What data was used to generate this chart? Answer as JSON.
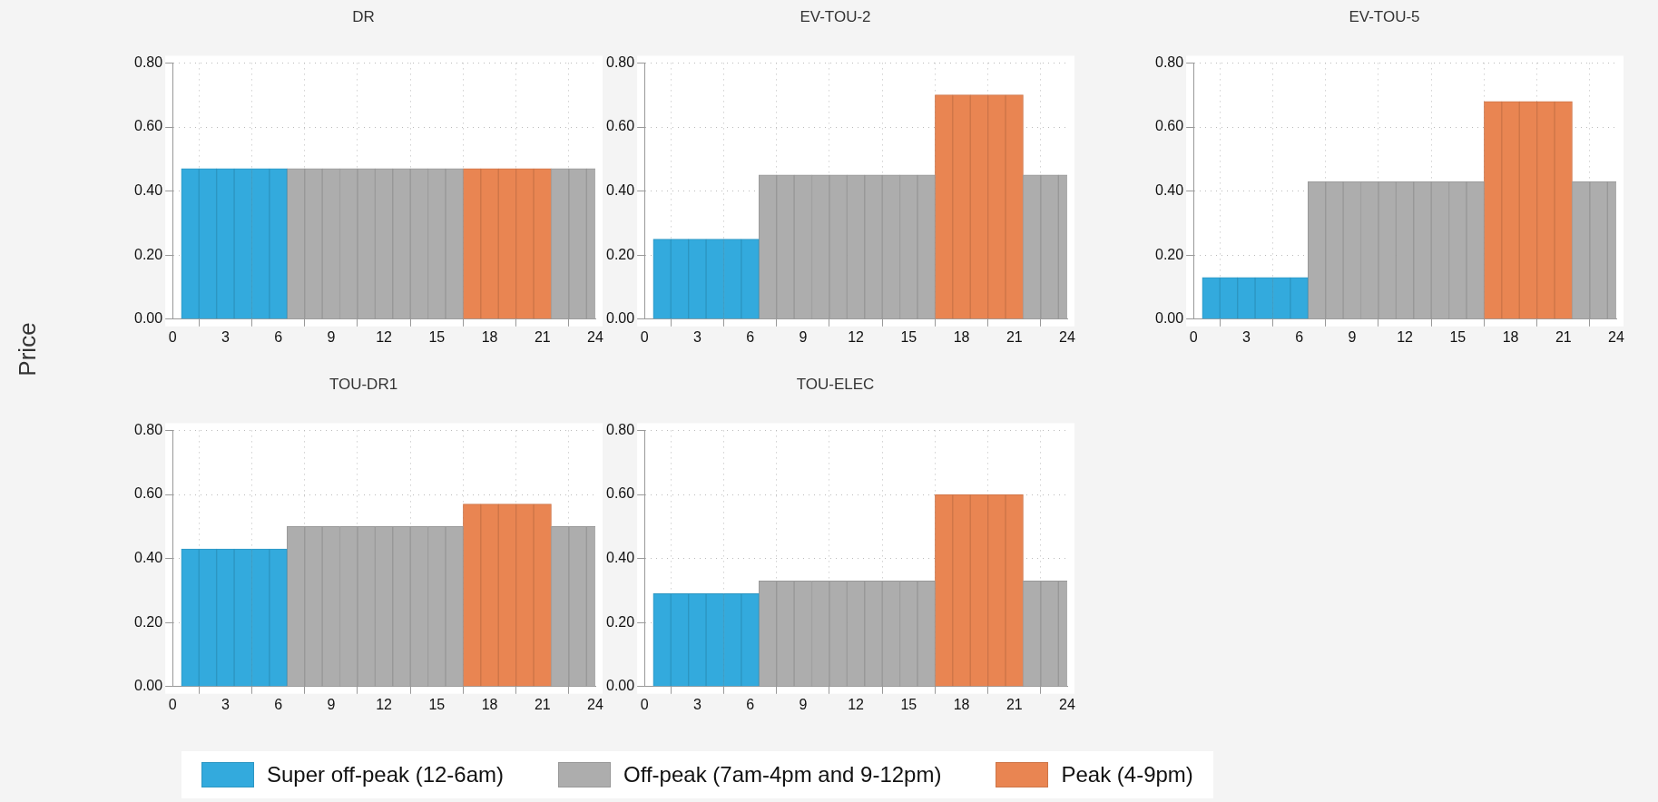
{
  "chart_data": [
    {
      "type": "bar",
      "title": "DR",
      "ylabel": "Price",
      "legend": "bottom",
      "xlim": [
        0,
        24
      ],
      "xticks": [
        0,
        3,
        6,
        9,
        12,
        15,
        18,
        21,
        24
      ],
      "ylim": [
        0,
        0.8
      ],
      "yticks": [
        {
          "value": 0,
          "label": "0.00"
        },
        {
          "value": 0.2,
          "label": "0.20"
        },
        {
          "value": 0.4,
          "label": "0.40"
        },
        {
          "value": 0.6,
          "label": "0.60"
        },
        {
          "value": 0.8,
          "label": "0.80"
        }
      ],
      "grid": true,
      "series": [
        {
          "name": "Super off-peak (12-6am)",
          "color": "#33aadd",
          "x": [
            1,
            2,
            3,
            4,
            5,
            6
          ],
          "values": [
            0.47,
            0.47,
            0.47,
            0.47,
            0.47,
            0.47
          ]
        },
        {
          "name": "Off-peak (7am-4pm and 9-12pm)",
          "color": "#adadad",
          "x": [
            7,
            8,
            9,
            10,
            11,
            12,
            13,
            14,
            15,
            16,
            22,
            23,
            24
          ],
          "values": [
            0.47,
            0.47,
            0.47,
            0.47,
            0.47,
            0.47,
            0.47,
            0.47,
            0.47,
            0.47,
            0.47,
            0.47,
            0.47
          ]
        },
        {
          "name": "Peak (4-9pm)",
          "color": "#e98552",
          "x": [
            17,
            18,
            19,
            20,
            21
          ],
          "values": [
            0.47,
            0.47,
            0.47,
            0.47,
            0.47
          ]
        }
      ]
    },
    {
      "type": "bar",
      "title": "EV-TOU-2",
      "xlim": [
        0,
        24
      ],
      "xticks": [
        0,
        3,
        6,
        9,
        12,
        15,
        18,
        21,
        24
      ],
      "ylim": [
        0,
        0.8
      ],
      "yticks": [
        {
          "value": 0,
          "label": "0.00"
        },
        {
          "value": 0.2,
          "label": "0.20"
        },
        {
          "value": 0.4,
          "label": "0.40"
        },
        {
          "value": 0.6,
          "label": "0.60"
        },
        {
          "value": 0.8,
          "label": "0.80"
        }
      ],
      "grid": true,
      "series": [
        {
          "color": "#33aadd",
          "x": [
            1,
            2,
            3,
            4,
            5,
            6
          ],
          "values": [
            0.25,
            0.25,
            0.25,
            0.25,
            0.25,
            0.25
          ]
        },
        {
          "color": "#adadad",
          "x": [
            7,
            8,
            9,
            10,
            11,
            12,
            13,
            14,
            15,
            16,
            22,
            23,
            24
          ],
          "values": [
            0.45,
            0.45,
            0.45,
            0.45,
            0.45,
            0.45,
            0.45,
            0.45,
            0.45,
            0.45,
            0.45,
            0.45,
            0.45
          ]
        },
        {
          "color": "#e98552",
          "x": [
            17,
            18,
            19,
            20,
            21
          ],
          "values": [
            0.7,
            0.7,
            0.7,
            0.7,
            0.7
          ]
        }
      ]
    },
    {
      "type": "bar",
      "title": "EV-TOU-5",
      "xlim": [
        0,
        24
      ],
      "xticks": [
        0,
        3,
        6,
        9,
        12,
        15,
        18,
        21,
        24
      ],
      "ylim": [
        0,
        0.8
      ],
      "yticks": [
        {
          "value": 0,
          "label": "0.00"
        },
        {
          "value": 0.2,
          "label": "0.20"
        },
        {
          "value": 0.4,
          "label": "0.40"
        },
        {
          "value": 0.6,
          "label": "0.60"
        },
        {
          "value": 0.8,
          "label": "0.80"
        }
      ],
      "grid": true,
      "series": [
        {
          "color": "#33aadd",
          "x": [
            1,
            2,
            3,
            4,
            5,
            6
          ],
          "values": [
            0.13,
            0.13,
            0.13,
            0.13,
            0.13,
            0.13
          ]
        },
        {
          "color": "#adadad",
          "x": [
            7,
            8,
            9,
            10,
            11,
            12,
            13,
            14,
            15,
            16,
            22,
            23,
            24
          ],
          "values": [
            0.43,
            0.43,
            0.43,
            0.43,
            0.43,
            0.43,
            0.43,
            0.43,
            0.43,
            0.43,
            0.43,
            0.43,
            0.43
          ]
        },
        {
          "color": "#e98552",
          "x": [
            17,
            18,
            19,
            20,
            21
          ],
          "values": [
            0.68,
            0.68,
            0.68,
            0.68,
            0.68
          ]
        }
      ]
    },
    {
      "type": "bar",
      "title": "TOU-DR1",
      "xlim": [
        0,
        24
      ],
      "xticks": [
        0,
        3,
        6,
        9,
        12,
        15,
        18,
        21,
        24
      ],
      "ylim": [
        0,
        0.8
      ],
      "yticks": [
        {
          "value": 0,
          "label": "0.00"
        },
        {
          "value": 0.2,
          "label": "0.20"
        },
        {
          "value": 0.4,
          "label": "0.40"
        },
        {
          "value": 0.6,
          "label": "0.60"
        },
        {
          "value": 0.8,
          "label": "0.80"
        }
      ],
      "grid": true,
      "series": [
        {
          "color": "#33aadd",
          "x": [
            1,
            2,
            3,
            4,
            5,
            6
          ],
          "values": [
            0.43,
            0.43,
            0.43,
            0.43,
            0.43,
            0.43
          ]
        },
        {
          "color": "#adadad",
          "x": [
            7,
            8,
            9,
            10,
            11,
            12,
            13,
            14,
            15,
            16,
            22,
            23,
            24
          ],
          "values": [
            0.5,
            0.5,
            0.5,
            0.5,
            0.5,
            0.5,
            0.5,
            0.5,
            0.5,
            0.5,
            0.5,
            0.5,
            0.5
          ]
        },
        {
          "color": "#e98552",
          "x": [
            17,
            18,
            19,
            20,
            21
          ],
          "values": [
            0.57,
            0.57,
            0.57,
            0.57,
            0.57
          ]
        }
      ]
    },
    {
      "type": "bar",
      "title": "TOU-ELEC",
      "xlim": [
        0,
        24
      ],
      "xticks": [
        0,
        3,
        6,
        9,
        12,
        15,
        18,
        21,
        24
      ],
      "ylim": [
        0,
        0.8
      ],
      "yticks": [
        {
          "value": 0,
          "label": "0.00"
        },
        {
          "value": 0.2,
          "label": "0.20"
        },
        {
          "value": 0.4,
          "label": "0.40"
        },
        {
          "value": 0.6,
          "label": "0.60"
        },
        {
          "value": 0.8,
          "label": "0.80"
        }
      ],
      "grid": true,
      "series": [
        {
          "color": "#33aadd",
          "x": [
            1,
            2,
            3,
            4,
            5,
            6
          ],
          "values": [
            0.29,
            0.29,
            0.29,
            0.29,
            0.29,
            0.29
          ]
        },
        {
          "color": "#adadad",
          "x": [
            7,
            8,
            9,
            10,
            11,
            12,
            13,
            14,
            15,
            16,
            22,
            23,
            24
          ],
          "values": [
            0.33,
            0.33,
            0.33,
            0.33,
            0.33,
            0.33,
            0.33,
            0.33,
            0.33,
            0.33,
            0.33,
            0.33,
            0.33
          ]
        },
        {
          "color": "#e98552",
          "x": [
            17,
            18,
            19,
            20,
            21
          ],
          "values": [
            0.6,
            0.6,
            0.6,
            0.6,
            0.6
          ]
        }
      ]
    }
  ]
}
